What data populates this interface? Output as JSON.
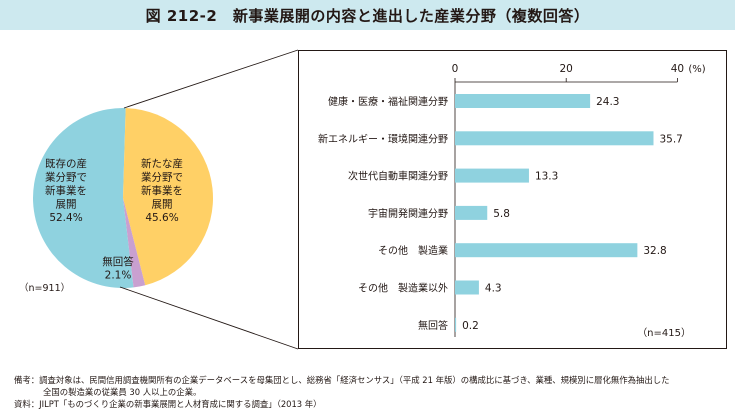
{
  "figure": {
    "title": "図 212-2　新事業展開の内容と進出した産業分野（複数回答）"
  },
  "pie": {
    "n_label": "（n=911）",
    "slices": [
      {
        "lines": [
          "既存の産",
          "業分野で",
          "新事業を",
          "展開"
        ],
        "value": 52.4,
        "value_label": "52.4%",
        "color": "#8fd2df"
      },
      {
        "lines": [
          "新たな産",
          "業分野で",
          "新事業を",
          "展開"
        ],
        "value": 45.6,
        "value_label": "45.6%",
        "color": "#ffd066"
      },
      {
        "lines": [
          "無回答"
        ],
        "value": 2.1,
        "value_label": "2.1%",
        "color": "#c9a0d0"
      }
    ]
  },
  "chart_data": {
    "type": "bar",
    "orientation": "horizontal",
    "categories": [
      "健康・医療・福祉関連分野",
      "新エネルギー・環境関連分野",
      "次世代自動車関連分野",
      "宇宙開発関連分野",
      "その他　製造業",
      "その他　製造業以外",
      "無回答"
    ],
    "values": [
      24.3,
      35.7,
      13.3,
      5.8,
      32.8,
      4.3,
      0.2
    ],
    "value_labels": [
      "24.3",
      "35.7",
      "13.3",
      "5.8",
      "32.8",
      "4.3",
      "0.2"
    ],
    "xlim": [
      0,
      40
    ],
    "xticks": [
      0,
      20,
      40
    ],
    "x_unit": "(%)",
    "n_label": "（n=415）",
    "bar_color": "#8fd2df"
  },
  "notes": {
    "line1": "備考：調査対象は、民間信用調査機関所有の企業データベースを母集団とし、総務省「経済センサス」（平成 21 年版）の構成比に基づき、業種、規模別に層化無作為抽出した",
    "line1b": "全国の製造業の従業員 30 人以上の企業。",
    "line2": "資料：JILPT「ものづくり企業の新事業展開と人材育成に関する調査」（2013 年）"
  }
}
